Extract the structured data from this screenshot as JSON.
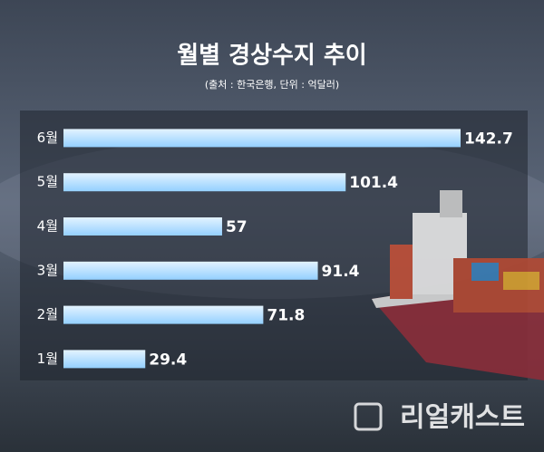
{
  "chart_data": {
    "type": "hbar",
    "title": "월별 경상수지 추이",
    "subtitle": "(출처 : 한국은행, 단위 : 억달러)",
    "categories": [
      "6월",
      "5월",
      "4월",
      "3월",
      "2월",
      "1월"
    ],
    "values": [
      142.7,
      101.4,
      57,
      91.4,
      71.8,
      29.4
    ],
    "color": "#a9dbff",
    "watermark": "리얼캐스트"
  }
}
